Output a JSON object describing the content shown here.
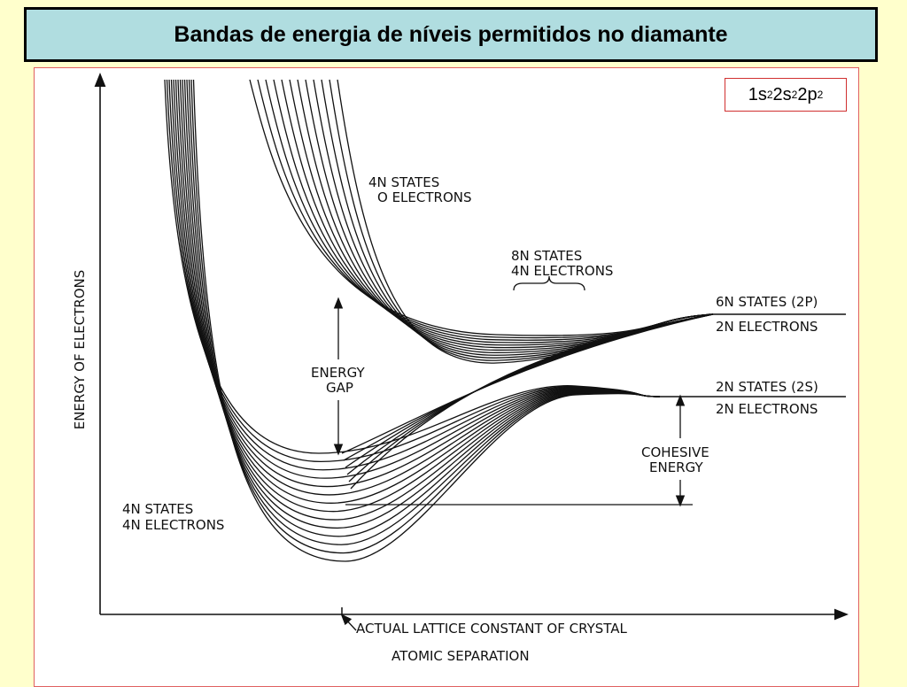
{
  "title": "Bandas de energia de níveis permitidos no diamante",
  "configuration": {
    "base": [
      "1s",
      "2s",
      "2p"
    ],
    "exponents": [
      "2",
      "2",
      "2"
    ]
  },
  "diagram": {
    "y_axis_label": "ENERGY OF ELECTRONS",
    "x_axis_label": "ATOMIC SEPARATION",
    "lattice_marker": "ACTUAL LATTICE CONSTANT OF CRYSTAL",
    "upper_band": {
      "line1": "4N STATES",
      "line2": "O ELECTRONS"
    },
    "middle_brace": {
      "line1": "8N STATES",
      "line2": "4N ELECTRONS"
    },
    "level_2p": {
      "line1": "6N STATES (2P)",
      "line2": "2N ELECTRONS"
    },
    "level_2s": {
      "line1": "2N STATES (2S)",
      "line2": "2N ELECTRONS"
    },
    "gap": {
      "line1": "ENERGY",
      "line2": "GAP"
    },
    "cohesive": {
      "line1": "COHESIVE",
      "line2": "ENERGY"
    },
    "lower_band": {
      "line1": "4N STATES",
      "line2": "4N ELECTRONS"
    }
  },
  "colors": {
    "title_bg": "#b0dde0",
    "page_bg": "#ffffcc",
    "panel_border": "#e06060"
  }
}
